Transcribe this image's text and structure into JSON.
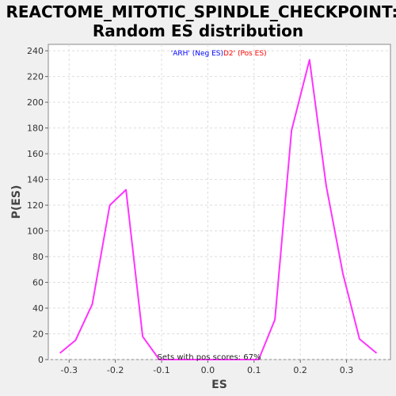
{
  "chart_data": {
    "type": "line",
    "title_line1": "REACTOME_MITOTIC_SPINDLE_CHECKPOINT:",
    "title_line2": "Random ES distribution",
    "xlabel": "ES",
    "ylabel": "P(ES)",
    "xlim": [
      -0.345,
      0.395
    ],
    "ylim": [
      0,
      245
    ],
    "x_ticks": [
      -0.3,
      -0.2,
      -0.1,
      0.0,
      0.1,
      0.2,
      0.3
    ],
    "x_tick_labels": [
      "-0.3",
      "-0.2",
      "-0.1",
      "0.0",
      "0.1",
      "0.2",
      "0.3"
    ],
    "y_ticks": [
      0,
      20,
      40,
      60,
      80,
      100,
      120,
      140,
      160,
      180,
      200,
      220,
      240
    ],
    "y_tick_labels": [
      "0",
      "20",
      "40",
      "60",
      "80",
      "100",
      "120",
      "140",
      "160",
      "180",
      "200",
      "220",
      "240"
    ],
    "grid": true,
    "legend_position": "top-center",
    "legend": {
      "neg_text": "'ARH' (Neg ES)",
      "pos_text": "D2' (Pos ES)",
      "neg_color": "#0000ff",
      "pos_color": "#ff0000"
    },
    "annotation": "Sets with pos scores: 67%",
    "line_color": "#ff33ff",
    "series": [
      {
        "x": [
          -0.32,
          -0.286,
          -0.25,
          -0.212,
          -0.177,
          -0.141,
          -0.105,
          -0.07,
          -0.034,
          0.002,
          0.038,
          0.074,
          0.11,
          0.145,
          0.181,
          0.22,
          0.256,
          0.292,
          0.328,
          0.365
        ],
        "y": [
          5,
          15,
          43,
          120,
          132,
          18,
          0,
          0,
          0,
          0,
          0,
          0,
          0,
          31,
          178,
          233,
          135,
          67,
          16,
          5
        ]
      }
    ]
  }
}
